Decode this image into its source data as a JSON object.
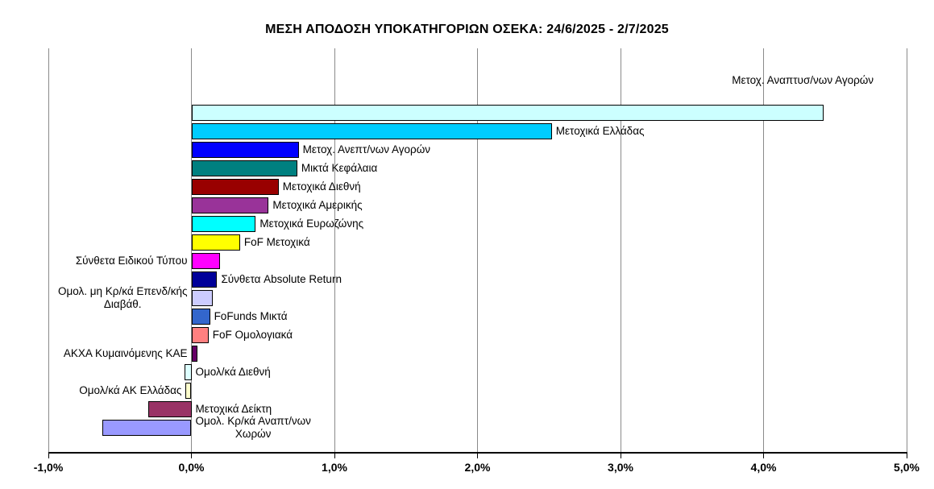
{
  "chart_data": {
    "type": "bar",
    "orientation": "horizontal",
    "title": "ΜΕΣΗ ΑΠΟΔΟΣΗ ΥΠΟΚΑΤΗΓΟΡΙΩΝ ΟΣΕΚΑ: 24/6/2025 - 2/7/2025",
    "xlabel": "",
    "ylabel": "",
    "value_unit": "%",
    "xlim": [
      -1.0,
      5.0
    ],
    "grid": true,
    "legend": "none",
    "x_ticks": [
      {
        "value": -1,
        "label": "-1,0%"
      },
      {
        "value": 0,
        "label": "0,0%"
      },
      {
        "value": 1,
        "label": "1,0%"
      },
      {
        "value": 2,
        "label": "2,0%"
      },
      {
        "value": 3,
        "label": "3,0%"
      },
      {
        "value": 4,
        "label": "4,0%"
      },
      {
        "value": 5,
        "label": "5,0%"
      }
    ],
    "bars": [
      {
        "label": "Μετοχ. Αναπτυσ/νων Αγορών",
        "value": 4.42,
        "color": "#CCFFFF",
        "label_side": "above"
      },
      {
        "label": "Μετοχικά Ελλάδας",
        "value": 2.52,
        "color": "#00CCFF",
        "label_side": "right"
      },
      {
        "label": "Μετοχ. Ανεπτ/νων Αγορών",
        "value": 0.75,
        "color": "#0000FF",
        "label_side": "right"
      },
      {
        "label": "Μικτά Κεφάλαια",
        "value": 0.74,
        "color": "#008080",
        "label_side": "right"
      },
      {
        "label": "Μετοχικά Διεθνή",
        "value": 0.61,
        "color": "#990000",
        "label_side": "right"
      },
      {
        "label": "Μετοχικά Αμερικής",
        "value": 0.54,
        "color": "#993399",
        "label_side": "right"
      },
      {
        "label": "Μετοχικά Ευρωζώνης",
        "value": 0.45,
        "color": "#00FFFF",
        "label_side": "right"
      },
      {
        "label": "FoF Μετοχικά",
        "value": 0.34,
        "color": "#FFFF00",
        "label_side": "right"
      },
      {
        "label": "Σύνθετα Ειδικού Τύπου",
        "value": 0.2,
        "color": "#FF00FF",
        "label_side": "left"
      },
      {
        "label": "Σύνθετα Absolute Return",
        "value": 0.18,
        "color": "#000099",
        "label_side": "right"
      },
      {
        "label": "Ομολ. μη Κρ/κά Επενδ/κής\nΔιαβάθ.",
        "value": 0.15,
        "color": "#CCCCFF",
        "label_side": "left"
      },
      {
        "label": "FoFunds Μικτά",
        "value": 0.13,
        "color": "#3366CC",
        "label_side": "right"
      },
      {
        "label": "FoF Ομολογιακά",
        "value": 0.12,
        "color": "#FF8080",
        "label_side": "right"
      },
      {
        "label": "ΑΚΧΑ Κυμαινόμενης ΚΑΕ",
        "value": 0.04,
        "color": "#660066",
        "label_side": "left"
      },
      {
        "label": "Ομολ/κά Διεθνή",
        "value": -0.05,
        "color": "#DDFFFF",
        "label_side": "right"
      },
      {
        "label": "Ομολ/κά ΑΚ Ελλάδας",
        "value": -0.04,
        "color": "#FFFFCC",
        "label_side": "left"
      },
      {
        "label": "Μετοχικά Δείκτη",
        "value": -0.3,
        "color": "#993366",
        "label_side": "right"
      },
      {
        "label": "Ομολ. Κρ/κά Αναπτ/νων\nΧωρών",
        "value": -0.62,
        "color": "#9999FF",
        "label_side": "right"
      }
    ]
  }
}
